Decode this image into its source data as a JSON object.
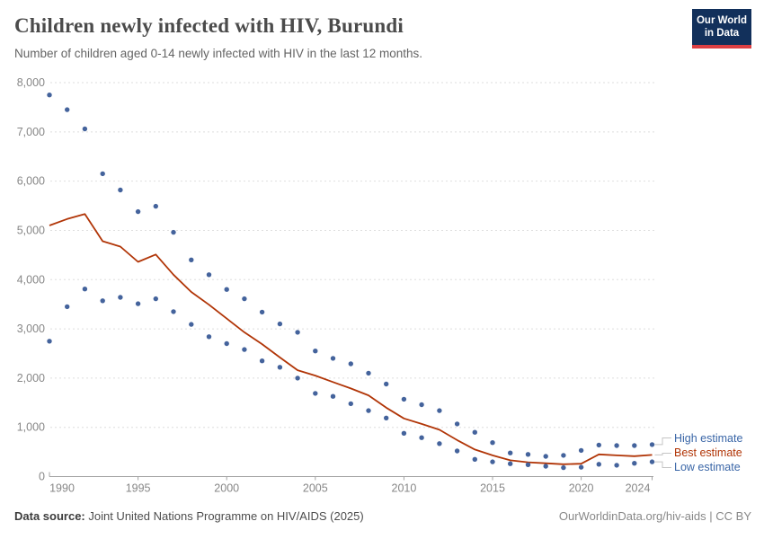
{
  "header": {
    "title": "Children newly infected with HIV, Burundi",
    "subtitle": "Number of children aged 0-14 newly infected with HIV in the last 12 months.",
    "logo": {
      "line1": "Our World",
      "line2": "in Data"
    }
  },
  "chart_data": {
    "type": "scatter",
    "title": "Children newly infected with HIV, Burundi",
    "x": [
      1990,
      1991,
      1992,
      1993,
      1994,
      1995,
      1996,
      1997,
      1998,
      1999,
      2000,
      2001,
      2002,
      2003,
      2004,
      2005,
      2006,
      2007,
      2008,
      2009,
      2010,
      2011,
      2012,
      2013,
      2014,
      2015,
      2016,
      2017,
      2018,
      2019,
      2020,
      2021,
      2022,
      2023,
      2024
    ],
    "series": [
      {
        "name": "High estimate",
        "style": "dots",
        "color": "#44639c",
        "values": [
          7750,
          7450,
          7060,
          6150,
          5820,
          5380,
          5490,
          4960,
          4400,
          4100,
          3800,
          3610,
          3340,
          3100,
          2930,
          2550,
          2400,
          2290,
          2100,
          1880,
          1570,
          1460,
          1340,
          1070,
          900,
          690,
          480,
          450,
          410,
          430,
          530,
          640,
          630,
          630,
          650
        ]
      },
      {
        "name": "Best estimate",
        "style": "line",
        "color": "#b13507",
        "values": [
          5100,
          5230,
          5330,
          4780,
          4670,
          4360,
          4510,
          4100,
          3750,
          3490,
          3210,
          2930,
          2690,
          2420,
          2160,
          2050,
          1920,
          1790,
          1650,
          1400,
          1180,
          1070,
          950,
          740,
          550,
          430,
          330,
          290,
          270,
          250,
          260,
          450,
          430,
          415,
          440
        ]
      },
      {
        "name": "Low estimate",
        "style": "dots",
        "color": "#44639c",
        "values": [
          2750,
          3450,
          3810,
          3570,
          3640,
          3510,
          3610,
          3350,
          3090,
          2840,
          2700,
          2580,
          2350,
          2220,
          2000,
          1690,
          1630,
          1480,
          1340,
          1190,
          880,
          790,
          670,
          520,
          350,
          300,
          260,
          240,
          210,
          180,
          190,
          250,
          230,
          270,
          300
        ]
      }
    ],
    "xlabel": "",
    "ylabel": "",
    "ylim": [
      0,
      8000
    ],
    "yticks": [
      0,
      1000,
      2000,
      3000,
      4000,
      5000,
      6000,
      7000,
      8000
    ],
    "xticks": [
      1990,
      1995,
      2000,
      2005,
      2010,
      2015,
      2020,
      2024
    ],
    "grid": "horizontal-dashed",
    "legend_position": "right"
  },
  "legend": {
    "items": [
      {
        "label": "High estimate",
        "color": "#3a66a7"
      },
      {
        "label": "Best estimate",
        "color": "#b13507"
      },
      {
        "label": "Low estimate",
        "color": "#3a66a7"
      }
    ]
  },
  "footer": {
    "source_label": "Data source:",
    "source_text": " Joint United Nations Programme on HIV/AIDS (2025)",
    "right_text": "OurWorldinData.org/hiv-aids | CC BY"
  },
  "colors": {
    "dot_blue": "#44639c",
    "line_red": "#b13507",
    "grid": "#dedede",
    "axis": "#a3a3a3",
    "tick_label": "#878787",
    "connector": "#c4c4c4"
  }
}
